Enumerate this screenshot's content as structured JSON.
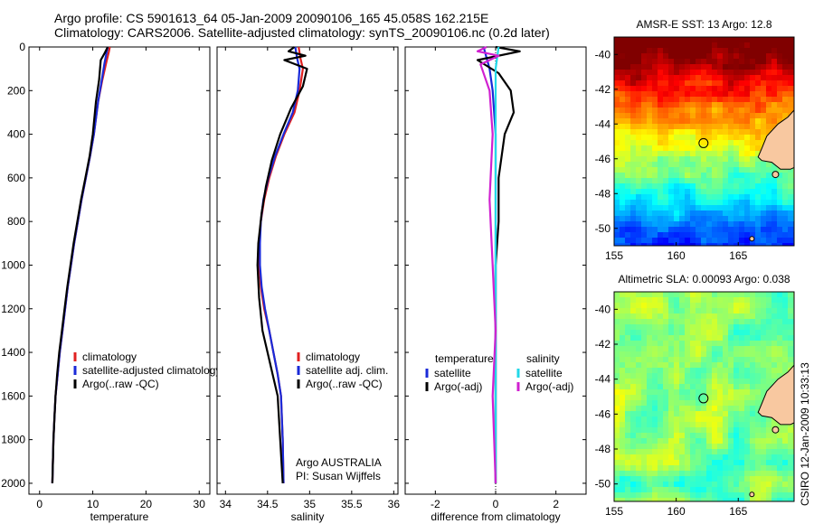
{
  "title_line1": "Argo profile: CS 5901613_64 05-Jan-2009 20090106_165 45.058S 162.215E",
  "title_line2": "Climatology: CARS2006. Satellite-adjusted climatology: synTS_20090106.nc (0.2d later)",
  "colors": {
    "climatology": "#e02020",
    "satellite": "#1a2ad8",
    "argo": "#000000",
    "sat_salinity": "#22d8e8",
    "argo_salinity": "#d020d0"
  },
  "annotations": {
    "argo_aus": "Argo AUSTRALIA",
    "pi": "PI: Susan Wijffels",
    "csiro_stamp": "CSIRO 12-Jan-2009 10:33:13"
  },
  "chart_data": [
    {
      "type": "line",
      "xlabel": "temperature",
      "xticks": [
        "0",
        "10",
        "20",
        "30"
      ],
      "xlim": [
        -2,
        32
      ],
      "ylim": [
        2050,
        0
      ],
      "yticks": [
        "0",
        "200",
        "400",
        "600",
        "800",
        "1000",
        "1200",
        "1400",
        "1600",
        "1800",
        "2000"
      ],
      "legend": [
        "climatology",
        "satellite-adjusted climatology",
        "Argo(..raw -QC)"
      ],
      "legend_position": "lower-right",
      "series": [
        {
          "name": "climatology",
          "color": "#e02020",
          "x": [
            13.2,
            13.0,
            12.5,
            11.8,
            11.0,
            10.2,
            9.5,
            8.7,
            7.9,
            7.2,
            6.5,
            5.9,
            5.3,
            4.8,
            4.3,
            3.8,
            3.4,
            3.0,
            2.8,
            2.6,
            2.4
          ],
          "y": [
            0,
            25,
            75,
            150,
            250,
            400,
            500,
            600,
            700,
            800,
            900,
            1000,
            1100,
            1200,
            1300,
            1400,
            1500,
            1600,
            1700,
            1800,
            2000
          ]
        },
        {
          "name": "satellite-adjusted climatology",
          "color": "#1a2ad8",
          "x": [
            12.8,
            12.6,
            12.2,
            11.7,
            11.0,
            10.2,
            9.5,
            8.7,
            7.9,
            7.2,
            6.5,
            5.9,
            5.3,
            4.8,
            4.3,
            3.8,
            3.4,
            3.0,
            2.8,
            2.6,
            2.4
          ],
          "y": [
            0,
            25,
            75,
            150,
            250,
            400,
            500,
            600,
            700,
            800,
            900,
            1000,
            1100,
            1200,
            1300,
            1400,
            1500,
            1600,
            1700,
            1800,
            2000
          ]
        },
        {
          "name": "Argo(..raw -QC)",
          "color": "#000000",
          "x": [
            12.8,
            12.2,
            11.5,
            11.2,
            10.6,
            10.0,
            9.4,
            8.6,
            7.8,
            7.1,
            6.4,
            5.8,
            5.2,
            4.7,
            4.2,
            3.7,
            3.3,
            3.0,
            2.8,
            2.6,
            2.4
          ],
          "y": [
            0,
            30,
            60,
            150,
            250,
            400,
            500,
            600,
            700,
            800,
            900,
            1000,
            1100,
            1200,
            1300,
            1400,
            1500,
            1600,
            1700,
            1800,
            2000
          ]
        }
      ]
    },
    {
      "type": "line",
      "xlabel": "salinity",
      "xticks": [
        "34",
        "34.5",
        "35",
        "35.5",
        "36"
      ],
      "xlim": [
        33.9,
        36.05
      ],
      "ylim": [
        2050,
        0
      ],
      "legend": [
        "climatology",
        "satellite adj. clim.",
        "Argo(..raw -QC)"
      ],
      "legend_position": "lower-right",
      "series": [
        {
          "name": "climatology",
          "color": "#e02020",
          "x": [
            34.87,
            34.89,
            34.92,
            34.88,
            34.82,
            34.7,
            34.6,
            34.52,
            34.46,
            34.42,
            34.4,
            34.4,
            34.42,
            34.46,
            34.52,
            34.57,
            34.62,
            34.66,
            34.68,
            34.69
          ],
          "y": [
            0,
            50,
            100,
            200,
            300,
            400,
            500,
            600,
            700,
            800,
            900,
            1000,
            1100,
            1200,
            1300,
            1400,
            1500,
            1600,
            1800,
            2000
          ]
        },
        {
          "name": "satellite adj. clim.",
          "color": "#1a2ad8",
          "x": [
            34.83,
            34.85,
            34.88,
            34.86,
            34.8,
            34.69,
            34.59,
            34.51,
            34.45,
            34.42,
            34.41,
            34.41,
            34.43,
            34.47,
            34.52,
            34.57,
            34.62,
            34.66,
            34.68,
            34.69
          ],
          "y": [
            0,
            50,
            100,
            200,
            300,
            400,
            500,
            600,
            700,
            800,
            900,
            1000,
            1100,
            1200,
            1300,
            1400,
            1500,
            1600,
            1800,
            2000
          ]
        },
        {
          "name": "Argo(..raw -QC)",
          "color": "#000000",
          "x": [
            34.82,
            34.75,
            34.95,
            34.7,
            34.97,
            34.92,
            34.78,
            34.65,
            34.55,
            34.48,
            34.43,
            34.39,
            34.38,
            34.4,
            34.44,
            34.5,
            34.56,
            34.62,
            34.65,
            34.68
          ],
          "y": [
            0,
            20,
            40,
            60,
            100,
            180,
            280,
            400,
            520,
            640,
            760,
            900,
            1000,
            1150,
            1300,
            1400,
            1500,
            1600,
            1800,
            2000
          ]
        }
      ]
    },
    {
      "type": "line",
      "xlabel": "difference from climatology",
      "xticks": [
        "-2",
        "0",
        "2"
      ],
      "xlim": [
        -3.0,
        3.0
      ],
      "ylim": [
        2050,
        0
      ],
      "legend_headers": [
        "temperature",
        "salinity"
      ],
      "legend": [
        "satellite",
        "Argo(-adj)",
        "satellite",
        "Argo(-adj)"
      ],
      "legend_position": "lower-right",
      "series": [
        {
          "name": "satellite",
          "group": "temperature",
          "color": "#1a2ad8",
          "x": [
            -0.4,
            -0.3,
            -0.2,
            -0.1,
            0.0,
            0.0,
            0.0,
            0.0,
            0.0
          ],
          "y": [
            0,
            50,
            100,
            200,
            400,
            800,
            1200,
            1600,
            2000
          ]
        },
        {
          "name": "Argo(-adj)",
          "group": "temperature",
          "color": "#000000",
          "x": [
            0.0,
            0.8,
            -0.6,
            0.1,
            0.5,
            0.6,
            0.3,
            0.1,
            0.1,
            0.0,
            0.0,
            0.0,
            0.0
          ],
          "y": [
            0,
            20,
            60,
            120,
            200,
            300,
            400,
            600,
            800,
            1000,
            1400,
            1600,
            2000
          ]
        },
        {
          "name": "satellite",
          "group": "salinity",
          "color": "#22d8e8",
          "x": [
            0.1,
            0.0,
            0.0,
            0.0,
            0.0,
            0.0,
            0.0,
            0.0
          ],
          "y": [
            0,
            100,
            200,
            400,
            800,
            1200,
            1600,
            2000
          ]
        },
        {
          "name": "Argo(-adj)",
          "group": "salinity",
          "color": "#d020d0",
          "x": [
            -0.3,
            -0.6,
            0.1,
            -0.5,
            -0.2,
            -0.1,
            -0.2,
            -0.1,
            0.0,
            -0.1,
            0.0
          ],
          "y": [
            0,
            20,
            40,
            80,
            200,
            400,
            700,
            1000,
            1300,
            1600,
            2000
          ]
        }
      ]
    },
    {
      "type": "heatmap",
      "title": "AMSR-E SST: 13 Argo: 12.8",
      "xticks": [
        "155",
        "160",
        "165"
      ],
      "yticks": [
        "-40",
        "-42",
        "-44",
        "-46",
        "-48",
        "-50"
      ],
      "xlim": [
        155,
        169.5
      ],
      "ylim": [
        -51,
        -39
      ],
      "marker": {
        "lon": 162.2,
        "lat": -45.1
      }
    },
    {
      "type": "heatmap",
      "title": "Altimetric SLA: 0.00093 Argo: 0.038",
      "xticks": [
        "155",
        "160",
        "165"
      ],
      "yticks": [
        "-40",
        "-42",
        "-44",
        "-46",
        "-48",
        "-50"
      ],
      "xlim": [
        155,
        169.5
      ],
      "ylim": [
        -51,
        -39
      ],
      "marker": {
        "lon": 162.2,
        "lat": -45.1
      }
    }
  ]
}
